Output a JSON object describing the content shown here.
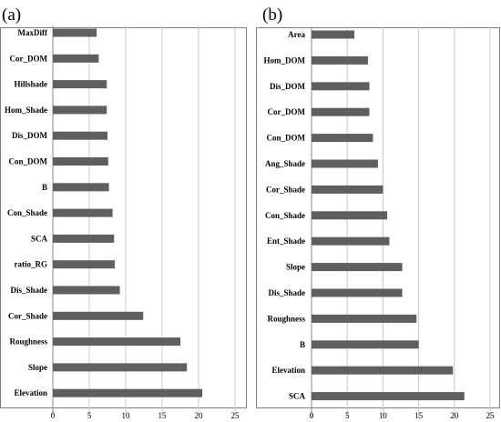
{
  "chart_data": [
    {
      "type": "bar",
      "orientation": "horizontal",
      "panel_label": "(a)",
      "categories": [
        "MaxDiff",
        "Cor_DOM",
        "Hillshade",
        "Hom_Shade",
        "Dis_DOM",
        "Con_DOM",
        "B",
        "Con_Shade",
        "SCA",
        "ratio_RG",
        "Dis_Shade",
        "Cor_Shade",
        "Roughness",
        "Slope",
        "Elevation"
      ],
      "values": [
        6.0,
        6.3,
        7.4,
        7.4,
        7.5,
        7.6,
        7.7,
        8.2,
        8.4,
        8.5,
        9.2,
        12.4,
        17.5,
        18.4,
        20.5
      ],
      "xlim": [
        0,
        25
      ],
      "xticks": [
        "0",
        "5",
        "10",
        "15",
        "20",
        "25"
      ],
      "grid": true,
      "bar_color": "#5f5f5f"
    },
    {
      "type": "bar",
      "orientation": "horizontal",
      "panel_label": "(b)",
      "categories": [
        "Area",
        "Hom_DOM",
        "Dis_DOM",
        "Cor_DOM",
        "Con_DOM",
        "Ang_Shade",
        "Cor_Shade",
        "Con_Shade",
        "Ent_Shade",
        "Slope",
        "Dis_Shade",
        "Roughness",
        "B",
        "Elevation",
        "SCA"
      ],
      "values": [
        6.0,
        7.9,
        8.1,
        8.1,
        8.6,
        9.3,
        10.0,
        10.6,
        10.9,
        12.7,
        12.7,
        14.7,
        15.0,
        19.8,
        21.4
      ],
      "xlim": [
        0,
        25
      ],
      "xticks": [
        "0",
        "5",
        "10",
        "15",
        "20",
        "25"
      ],
      "grid": true,
      "bar_color": "#5f5f5f"
    }
  ]
}
